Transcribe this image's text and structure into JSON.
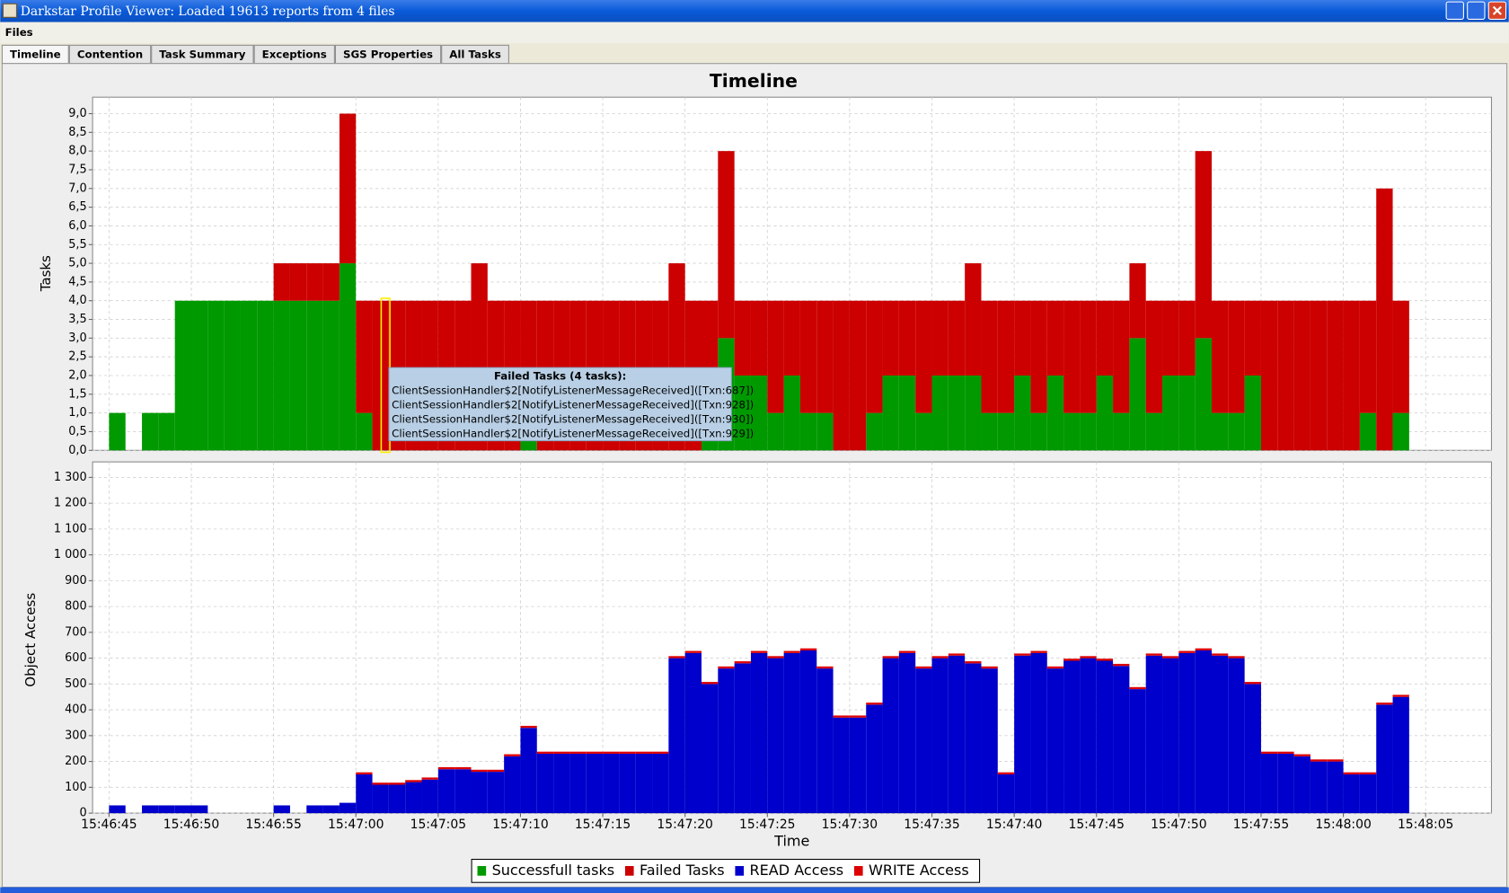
{
  "window": {
    "title": "Darkstar Profile Viewer: Loaded 19613 reports from 4 files"
  },
  "menu": [
    "Files"
  ],
  "tabs": [
    "Timeline",
    "Contention",
    "Task Summary",
    "Exceptions",
    "SGS Properties",
    "All Tasks"
  ],
  "panel_title": "Timeline",
  "tooltip": {
    "title": "Failed Tasks (4 tasks):",
    "lines": [
      "ClientSessionHandler$2[NotifyListenerMessageReceived]([Txn:687])",
      "ClientSessionHandler$2[NotifyListenerMessageReceived]([Txn:928])",
      "ClientSessionHandler$2[NotifyListenerMessageReceived]([Txn:930])",
      "ClientSessionHandler$2[NotifyListenerMessageReceived]([Txn:929])"
    ]
  },
  "chart_data": [
    {
      "type": "bar",
      "stacked": true,
      "y_label": "Tasks",
      "grid": true,
      "x": [
        "15:46:45",
        "15:46:46",
        "15:46:47",
        "15:46:48",
        "15:46:49",
        "15:46:50",
        "15:46:51",
        "15:46:52",
        "15:46:53",
        "15:46:54",
        "15:46:55",
        "15:46:56",
        "15:46:57",
        "15:46:58",
        "15:46:59",
        "15:47:00",
        "15:47:01",
        "15:47:02",
        "15:47:03",
        "15:47:04",
        "15:47:05",
        "15:47:06",
        "15:47:07",
        "15:47:08",
        "15:47:09",
        "15:47:10",
        "15:47:11",
        "15:47:12",
        "15:47:13",
        "15:47:14",
        "15:47:15",
        "15:47:16",
        "15:47:17",
        "15:47:18",
        "15:47:19",
        "15:47:20",
        "15:47:21",
        "15:47:22",
        "15:47:23",
        "15:47:24",
        "15:47:25",
        "15:47:26",
        "15:47:27",
        "15:47:28",
        "15:47:29",
        "15:47:30",
        "15:47:31",
        "15:47:32",
        "15:47:33",
        "15:47:34",
        "15:47:35",
        "15:47:36",
        "15:47:37",
        "15:47:38",
        "15:47:39",
        "15:47:40",
        "15:47:41",
        "15:47:42",
        "15:47:43",
        "15:47:44",
        "15:47:45",
        "15:47:46",
        "15:47:47",
        "15:47:48",
        "15:47:49",
        "15:47:50",
        "15:47:51",
        "15:47:52",
        "15:47:53",
        "15:47:54",
        "15:47:55",
        "15:47:56",
        "15:47:57",
        "15:47:58",
        "15:47:59",
        "15:48:00",
        "15:48:01",
        "15:48:02",
        "15:48:03"
      ],
      "xlim": [
        "15:46:44",
        "15:48:09"
      ],
      "ylim": [
        0,
        9.44
      ],
      "yticks": [
        {
          "value": 0,
          "label": "0,0"
        },
        {
          "value": 0.5,
          "label": "0,5"
        },
        {
          "value": 1,
          "label": "1,0"
        },
        {
          "value": 1.5,
          "label": "1,5"
        },
        {
          "value": 2,
          "label": "2,0"
        },
        {
          "value": 2.5,
          "label": "2,5"
        },
        {
          "value": 3,
          "label": "3,0"
        },
        {
          "value": 3.5,
          "label": "3,5"
        },
        {
          "value": 4,
          "label": "4,0"
        },
        {
          "value": 4.5,
          "label": "4,5"
        },
        {
          "value": 5,
          "label": "5,0"
        },
        {
          "value": 5.5,
          "label": "5,5"
        },
        {
          "value": 6,
          "label": "6,0"
        },
        {
          "value": 6.5,
          "label": "6,5"
        },
        {
          "value": 7,
          "label": "7,0"
        },
        {
          "value": 7.5,
          "label": "7,5"
        },
        {
          "value": 8,
          "label": "8,0"
        },
        {
          "value": 8.5,
          "label": "8,5"
        },
        {
          "value": 9,
          "label": "9,0"
        }
      ],
      "series": [
        {
          "name": "Successfull tasks",
          "color": "#009900",
          "values": [
            1,
            0,
            1,
            1,
            4,
            4,
            4,
            4,
            4,
            4,
            4,
            4,
            4,
            4,
            5,
            1,
            0,
            0,
            0,
            0,
            0,
            0,
            0,
            0,
            0,
            1,
            0,
            0,
            0,
            0,
            0,
            0,
            0,
            0,
            0,
            0,
            1,
            3,
            2,
            2,
            1,
            2,
            1,
            1,
            0,
            0,
            1,
            2,
            2,
            1,
            2,
            2,
            2,
            1,
            1,
            2,
            1,
            2,
            1,
            1,
            2,
            1,
            3,
            1,
            2,
            2,
            3,
            1,
            1,
            2,
            0,
            0,
            0,
            0,
            0,
            0,
            1,
            0,
            1
          ]
        },
        {
          "name": "Failed Tasks",
          "color": "#cc0000",
          "values": [
            0,
            0,
            0,
            0,
            0,
            0,
            0,
            0,
            0,
            0,
            1,
            1,
            1,
            1,
            4,
            3,
            4,
            4,
            4,
            4,
            4,
            4,
            5,
            4,
            4,
            3,
            4,
            4,
            4,
            4,
            4,
            4,
            4,
            4,
            5,
            4,
            3,
            5,
            2,
            2,
            3,
            2,
            3,
            3,
            4,
            4,
            3,
            2,
            2,
            3,
            2,
            2,
            3,
            3,
            3,
            2,
            3,
            2,
            3,
            3,
            2,
            3,
            2,
            3,
            2,
            2,
            5,
            3,
            3,
            2,
            4,
            4,
            4,
            4,
            4,
            4,
            3,
            7,
            3
          ]
        }
      ]
    },
    {
      "type": "bar",
      "stacked": true,
      "y_label": "Object Access",
      "x_label": "Time",
      "grid": true,
      "x": [
        "15:46:45",
        "15:46:46",
        "15:46:47",
        "15:46:48",
        "15:46:49",
        "15:46:50",
        "15:46:51",
        "15:46:52",
        "15:46:53",
        "15:46:54",
        "15:46:55",
        "15:46:56",
        "15:46:57",
        "15:46:58",
        "15:46:59",
        "15:47:00",
        "15:47:01",
        "15:47:02",
        "15:47:03",
        "15:47:04",
        "15:47:05",
        "15:47:06",
        "15:47:07",
        "15:47:08",
        "15:47:09",
        "15:47:10",
        "15:47:11",
        "15:47:12",
        "15:47:13",
        "15:47:14",
        "15:47:15",
        "15:47:16",
        "15:47:17",
        "15:47:18",
        "15:47:19",
        "15:47:20",
        "15:47:21",
        "15:47:22",
        "15:47:23",
        "15:47:24",
        "15:47:25",
        "15:47:26",
        "15:47:27",
        "15:47:28",
        "15:47:29",
        "15:47:30",
        "15:47:31",
        "15:47:32",
        "15:47:33",
        "15:47:34",
        "15:47:35",
        "15:47:36",
        "15:47:37",
        "15:47:38",
        "15:47:39",
        "15:47:40",
        "15:47:41",
        "15:47:42",
        "15:47:43",
        "15:47:44",
        "15:47:45",
        "15:47:46",
        "15:47:47",
        "15:47:48",
        "15:47:49",
        "15:47:50",
        "15:47:51",
        "15:47:52",
        "15:47:53",
        "15:47:54",
        "15:47:55",
        "15:47:56",
        "15:47:57",
        "15:47:58",
        "15:47:59",
        "15:48:00",
        "15:48:01",
        "15:48:02",
        "15:48:03"
      ],
      "xlim": [
        "15:46:44",
        "15:48:09"
      ],
      "xticks": [
        "15:46:45",
        "15:46:50",
        "15:46:55",
        "15:47:00",
        "15:47:05",
        "15:47:10",
        "15:47:15",
        "15:47:20",
        "15:47:25",
        "15:47:30",
        "15:47:35",
        "15:47:40",
        "15:47:45",
        "15:47:50",
        "15:47:55",
        "15:48:00",
        "15:48:05"
      ],
      "ylim": [
        0,
        1360
      ],
      "yticks": [
        0,
        100,
        200,
        300,
        400,
        500,
        600,
        700,
        800,
        900,
        {
          "value": 1000,
          "label": "1 000"
        },
        {
          "value": 1100,
          "label": "1 100"
        },
        {
          "value": 1200,
          "label": "1 200"
        },
        {
          "value": 1300,
          "label": "1 300"
        }
      ],
      "series": [
        {
          "name": "READ Access",
          "color": "#0000cc",
          "values": [
            30,
            0,
            30,
            30,
            30,
            30,
            0,
            0,
            0,
            0,
            30,
            0,
            30,
            30,
            40,
            150,
            110,
            110,
            120,
            130,
            170,
            170,
            160,
            160,
            220,
            330,
            230,
            230,
            230,
            230,
            230,
            230,
            230,
            230,
            600,
            620,
            500,
            560,
            580,
            620,
            600,
            620,
            630,
            560,
            370,
            370,
            420,
            600,
            620,
            560,
            600,
            610,
            580,
            560,
            150,
            610,
            620,
            560,
            590,
            600,
            590,
            570,
            480,
            610,
            600,
            620,
            630,
            610,
            600,
            500,
            230,
            230,
            220,
            200,
            200,
            150,
            150,
            420,
            450
          ]
        },
        {
          "name": "WRITE Access",
          "color": "#dd0000",
          "values": [
            0,
            0,
            0,
            0,
            0,
            0,
            0,
            0,
            0,
            0,
            0,
            0,
            0,
            0,
            0,
            8,
            8,
            8,
            8,
            8,
            8,
            8,
            8,
            8,
            8,
            8,
            8,
            8,
            8,
            8,
            8,
            8,
            8,
            8,
            8,
            8,
            8,
            8,
            8,
            8,
            8,
            8,
            8,
            8,
            8,
            8,
            8,
            8,
            8,
            8,
            8,
            8,
            8,
            8,
            8,
            8,
            8,
            8,
            8,
            8,
            8,
            8,
            8,
            8,
            8,
            8,
            8,
            8,
            8,
            8,
            8,
            8,
            8,
            8,
            8,
            8,
            8,
            8,
            8
          ]
        }
      ]
    }
  ]
}
